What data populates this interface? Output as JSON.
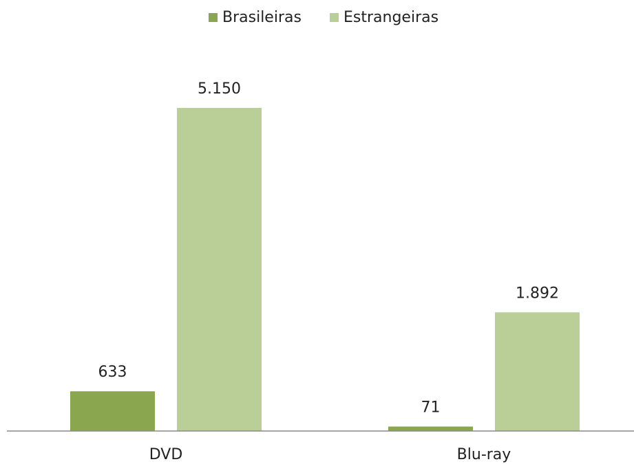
{
  "chart_data": {
    "type": "bar",
    "categories": [
      "DVD",
      "Blu-ray"
    ],
    "series": [
      {
        "name": "Brasileiras",
        "color": "#8aa64e",
        "values": [
          633,
          71
        ],
        "value_labels": [
          "633",
          "71"
        ]
      },
      {
        "name": "Estrangeiras",
        "color": "#bacf98",
        "values": [
          5150,
          1892
        ],
        "value_labels": [
          "5.150",
          "1.892"
        ]
      }
    ],
    "legend": "top"
  }
}
